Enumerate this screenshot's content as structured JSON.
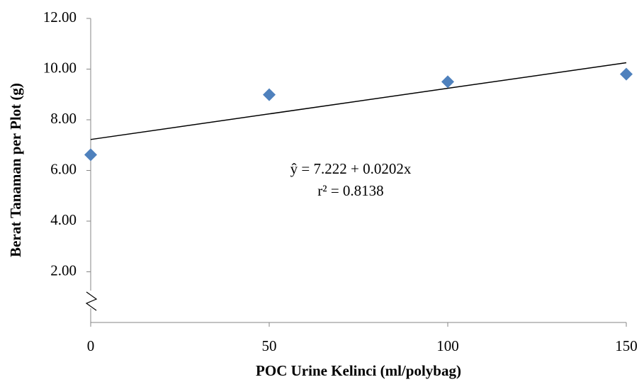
{
  "chart_data": {
    "type": "scatter",
    "x_label": "POC Urine Kelinci (ml/polybag)",
    "y_label": "Berat Tanaman per Plot (g)",
    "x": [
      0,
      50,
      100,
      150
    ],
    "values": [
      6.62,
      8.99,
      9.5,
      9.8
    ],
    "color": "#4f81bd",
    "trendline": {
      "x": [
        0,
        150
      ],
      "values": [
        7.222,
        10.252
      ],
      "color": "#000000"
    },
    "annotations": [
      "ŷ = 7.222 + 0.0202x",
      "r² = 0.8138"
    ],
    "xlim": [
      0,
      150
    ],
    "xticks": [
      0,
      50,
      100,
      150
    ],
    "ylim": [
      0,
      12
    ],
    "yticks": [
      {
        "value": 2,
        "label": "2.00"
      },
      {
        "value": 4,
        "label": "4.00"
      },
      {
        "value": 6,
        "label": "6.00"
      },
      {
        "value": 8,
        "label": "8.00"
      },
      {
        "value": 10,
        "label": "10.00"
      },
      {
        "value": 12,
        "label": "12.00"
      }
    ],
    "grid": false
  }
}
